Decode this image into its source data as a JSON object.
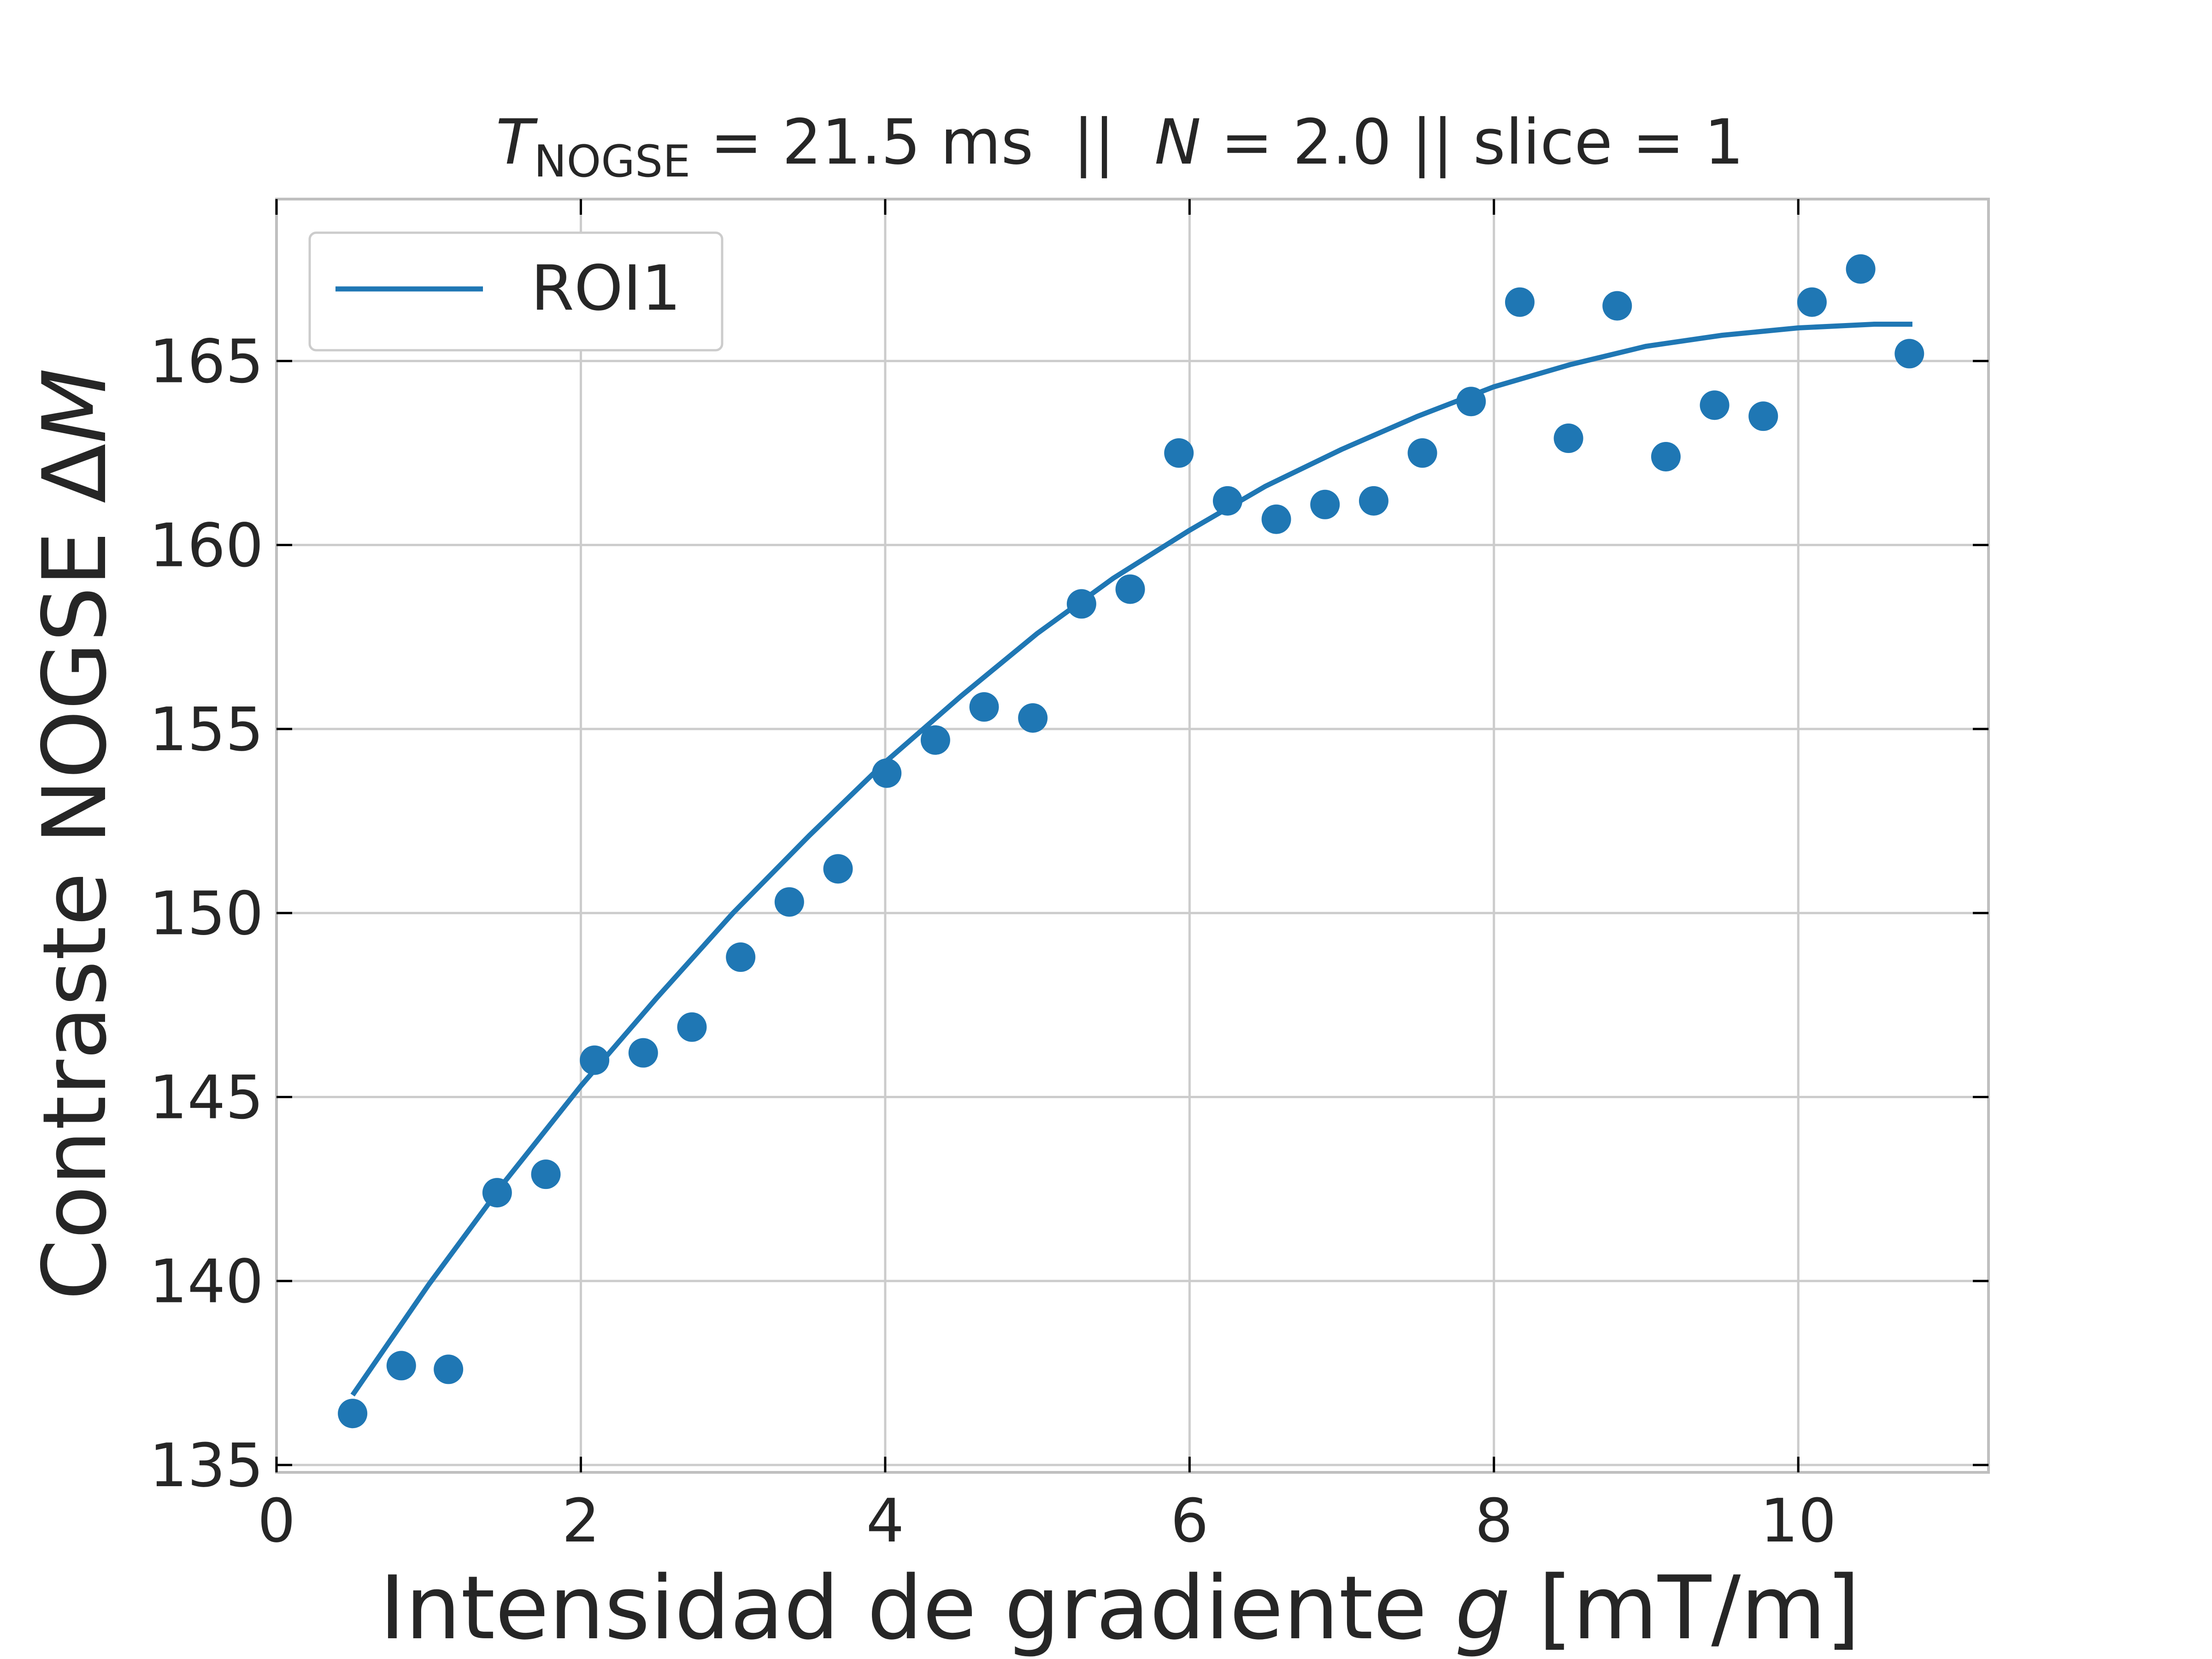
{
  "chart_data": {
    "type": "scatter",
    "title": {
      "t_symbol": "T",
      "t_subscript": "NOGSE",
      "t_value": " = 21.5 ms  ||  ",
      "n_symbol": "N",
      "n_value": " = 2.0 || slice = 1"
    },
    "xlabel": {
      "text": "Intensidad de gradiente ",
      "symbol": "g",
      "unit": " [mT/m]"
    },
    "ylabel": {
      "text": "Contraste NOGSE Δ",
      "symbol": "M"
    },
    "xlim": [
      0,
      11.25
    ],
    "ylim": [
      134.8,
      169.4
    ],
    "xticks": [
      0,
      2,
      4,
      6,
      8,
      10
    ],
    "yticks": [
      135,
      140,
      145,
      150,
      155,
      160,
      165
    ],
    "grid": true,
    "legend": {
      "position": "upper-left",
      "entries": [
        "ROI1"
      ]
    },
    "colors": {
      "series": "#1f77b4",
      "grid": "#cccccc",
      "frame": "#bfbfbf",
      "text": "#262626"
    },
    "series": [
      {
        "name": "ROI1",
        "points": [
          [
            0.5,
            136.4
          ],
          [
            0.82,
            137.7
          ],
          [
            1.13,
            137.6
          ],
          [
            1.45,
            142.4
          ],
          [
            1.77,
            142.9
          ],
          [
            2.09,
            146.0
          ],
          [
            2.41,
            146.2
          ],
          [
            2.73,
            146.9
          ],
          [
            3.05,
            148.8
          ],
          [
            3.37,
            150.3
          ],
          [
            3.69,
            151.2
          ],
          [
            4.01,
            153.8
          ],
          [
            4.33,
            154.7
          ],
          [
            4.65,
            155.6
          ],
          [
            4.97,
            155.3
          ],
          [
            5.29,
            158.4
          ],
          [
            5.61,
            158.8
          ],
          [
            5.93,
            162.5
          ],
          [
            6.25,
            161.2
          ],
          [
            6.57,
            160.7
          ],
          [
            6.89,
            161.1
          ],
          [
            7.21,
            161.2
          ],
          [
            7.53,
            162.5
          ],
          [
            7.85,
            163.9
          ],
          [
            8.17,
            166.6
          ],
          [
            8.49,
            162.9
          ],
          [
            8.81,
            166.5
          ],
          [
            9.13,
            162.4
          ],
          [
            9.45,
            163.8
          ],
          [
            9.77,
            163.5
          ],
          [
            10.09,
            166.6
          ],
          [
            10.41,
            167.5
          ],
          [
            10.73,
            165.2
          ]
        ],
        "fit": [
          [
            0.5,
            136.9
          ],
          [
            1.0,
            139.9
          ],
          [
            1.5,
            142.7
          ],
          [
            2.0,
            145.3
          ],
          [
            2.5,
            147.7
          ],
          [
            3.0,
            150.0
          ],
          [
            3.5,
            152.1
          ],
          [
            4.0,
            154.1
          ],
          [
            4.5,
            155.9
          ],
          [
            5.0,
            157.6
          ],
          [
            5.5,
            159.1
          ],
          [
            6.0,
            160.4
          ],
          [
            6.5,
            161.6
          ],
          [
            7.0,
            162.6
          ],
          [
            7.5,
            163.5
          ],
          [
            8.0,
            164.3
          ],
          [
            8.5,
            164.9
          ],
          [
            9.0,
            165.4
          ],
          [
            9.5,
            165.7
          ],
          [
            10.0,
            165.9
          ],
          [
            10.5,
            166.0
          ],
          [
            10.75,
            166.0
          ]
        ]
      }
    ]
  }
}
